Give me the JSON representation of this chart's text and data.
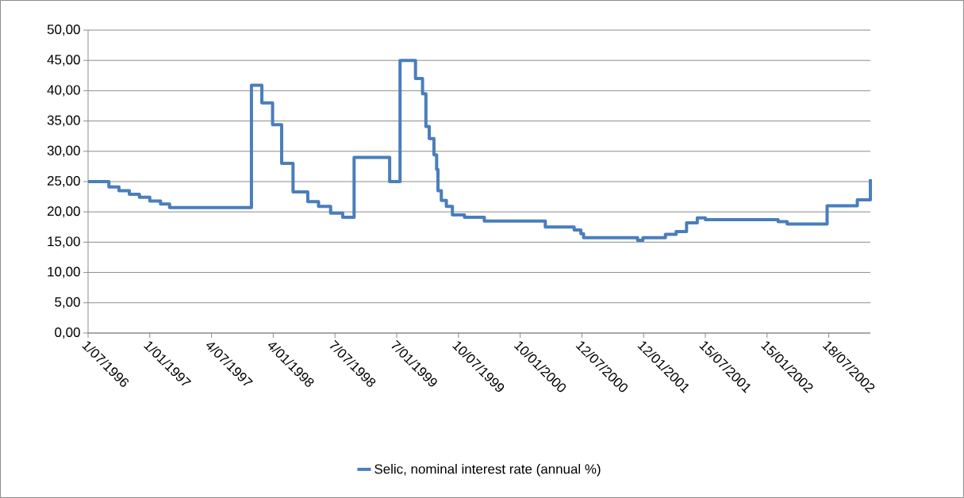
{
  "chart_data": {
    "type": "step",
    "x": [
      "1996-07-01",
      "1996-09-01",
      "1996-10-01",
      "1996-11-01",
      "1996-12-01",
      "1997-01-01",
      "1997-02-02",
      "1997-03-01",
      "1997-10-31",
      "1997-12-01",
      "1998-01-02",
      "1998-01-29",
      "1998-03-04",
      "1998-04-17",
      "1998-05-19",
      "1998-06-24",
      "1998-07-30",
      "1998-09-02",
      "1998-12-17",
      "1999-01-17",
      "1999-03-04",
      "1999-03-25",
      "1999-04-04",
      "1999-04-14",
      "1999-04-28",
      "1999-05-06",
      "1999-05-10",
      "1999-05-20",
      "1999-06-04",
      "1999-06-22",
      "1999-07-28",
      "1999-09-25",
      "2000-03-25",
      "2000-06-19",
      "2000-07-09",
      "2000-07-17",
      "2000-12-25",
      "2001-01-10",
      "2001-03-18",
      "2001-04-19",
      "2001-05-20",
      "2001-06-21",
      "2001-07-15",
      "2002-02-17",
      "2002-03-16",
      "2002-07-13",
      "2002-10-11",
      "2002-11-19"
    ],
    "series": [
      {
        "name": "Selic, nominal interest rate (annual %)",
        "color": "#4a7ebb",
        "values": [
          25.0,
          24.1,
          23.5,
          22.9,
          22.4,
          21.8,
          21.3,
          20.7,
          40.9,
          38.0,
          34.4,
          28.0,
          23.3,
          21.7,
          20.9,
          19.8,
          19.1,
          29.0,
          25.0,
          45.0,
          42.0,
          39.5,
          34.1,
          32.1,
          29.4,
          27.0,
          23.5,
          21.9,
          20.9,
          19.5,
          19.1,
          18.5,
          17.5,
          17.0,
          16.4,
          15.75,
          15.3,
          15.75,
          16.3,
          16.75,
          18.2,
          19.0,
          18.7,
          18.4,
          18.0,
          21.0,
          22.0,
          25.4
        ]
      }
    ],
    "xlim": [
      "1996-07-01",
      "2002-11-19"
    ],
    "xticks": [
      {
        "value": "1996-07-01",
        "label": "1/07/1996"
      },
      {
        "value": "1997-01-01",
        "label": "1/01/1997"
      },
      {
        "value": "1997-07-04",
        "label": "4/07/1997"
      },
      {
        "value": "1998-01-04",
        "label": "4/01/1998"
      },
      {
        "value": "1998-07-07",
        "label": "7/07/1998"
      },
      {
        "value": "1999-01-07",
        "label": "7/01/1999"
      },
      {
        "value": "1999-07-10",
        "label": "10/07/1999"
      },
      {
        "value": "2000-01-10",
        "label": "10/01/2000"
      },
      {
        "value": "2000-07-12",
        "label": "12/07/2000"
      },
      {
        "value": "2001-01-12",
        "label": "12/01/2001"
      },
      {
        "value": "2001-07-15",
        "label": "15/07/2001"
      },
      {
        "value": "2002-01-15",
        "label": "15/01/2002"
      },
      {
        "value": "2002-07-18",
        "label": "18/07/2002"
      }
    ],
    "ylim": [
      0,
      50
    ],
    "yticks": [
      {
        "value": 0,
        "label": "0,00"
      },
      {
        "value": 5,
        "label": "5,00"
      },
      {
        "value": 10,
        "label": "10,00"
      },
      {
        "value": 15,
        "label": "15,00"
      },
      {
        "value": 20,
        "label": "20,00"
      },
      {
        "value": 25,
        "label": "25,00"
      },
      {
        "value": 30,
        "label": "30,00"
      },
      {
        "value": 35,
        "label": "35,00"
      },
      {
        "value": 40,
        "label": "40,00"
      },
      {
        "value": 45,
        "label": "45,00"
      },
      {
        "value": 50,
        "label": "50,00"
      }
    ],
    "grid": "y",
    "legend": "bottom",
    "marker": "none",
    "line_style": "solid"
  }
}
